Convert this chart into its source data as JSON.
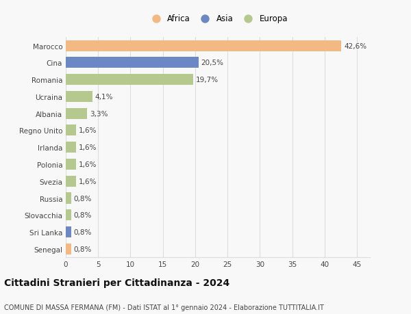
{
  "categories": [
    "Marocco",
    "Cina",
    "Romania",
    "Ucraina",
    "Albania",
    "Regno Unito",
    "Irlanda",
    "Polonia",
    "Svezia",
    "Russia",
    "Slovacchia",
    "Sri Lanka",
    "Senegal"
  ],
  "values": [
    42.6,
    20.5,
    19.7,
    4.1,
    3.3,
    1.6,
    1.6,
    1.6,
    1.6,
    0.8,
    0.8,
    0.8,
    0.8
  ],
  "labels": [
    "42,6%",
    "20,5%",
    "19,7%",
    "4,1%",
    "3,3%",
    "1,6%",
    "1,6%",
    "1,6%",
    "1,6%",
    "0,8%",
    "0,8%",
    "0,8%",
    "0,8%"
  ],
  "colors": [
    "#F4B882",
    "#6B87C4",
    "#B5C98E",
    "#B5C98E",
    "#B5C98E",
    "#B5C98E",
    "#B5C98E",
    "#B5C98E",
    "#B5C98E",
    "#B5C98E",
    "#B5C98E",
    "#6B87C4",
    "#F4B882"
  ],
  "legend_labels": [
    "Africa",
    "Asia",
    "Europa"
  ],
  "legend_colors": [
    "#F4B882",
    "#6B87C4",
    "#B5C98E"
  ],
  "title": "Cittadini Stranieri per Cittadinanza - 2024",
  "subtitle": "COMUNE DI MASSA FERMANA (FM) - Dati ISTAT al 1° gennaio 2024 - Elaborazione TUTTITALIA.IT",
  "xlim": [
    0,
    47
  ],
  "xticks": [
    0,
    5,
    10,
    15,
    20,
    25,
    30,
    35,
    40,
    45
  ],
  "background_color": "#f8f8f8",
  "grid_color": "#dddddd",
  "bar_height": 0.65,
  "label_fontsize": 7.5,
  "tick_fontsize": 7.5,
  "title_fontsize": 10,
  "subtitle_fontsize": 7
}
